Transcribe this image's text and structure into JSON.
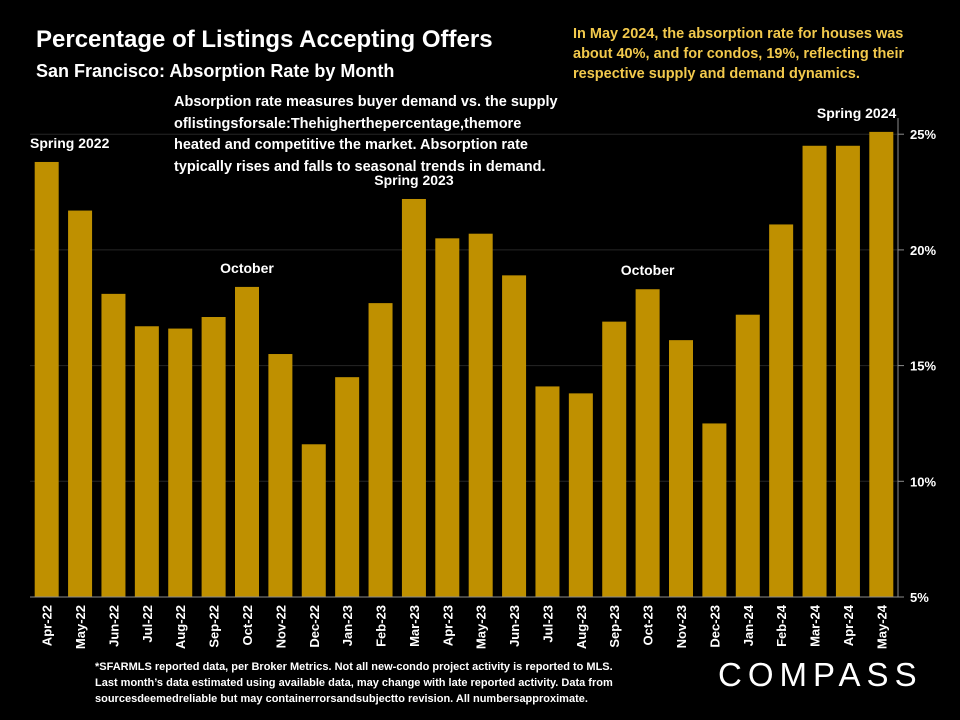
{
  "header": {
    "title": "Percentage of Listings Accepting Offers",
    "subtitle": "San Francisco: Absorption Rate by Month"
  },
  "callout": {
    "text": "In May 2024, the absorption rate for houses was about 40%, and for condos, 19%, reflecting their respective supply and demand dynamics.",
    "color": "#F2C94C"
  },
  "note": {
    "lines": [
      "Absorption rate measures buyer demand vs. the supply",
      "oflistingsforsale:Thehigherthepercentage,themore",
      "heated and competitive the market. Absorption rate",
      "typically rises and falls to seasonal trends in demand."
    ]
  },
  "footnote": {
    "lines": [
      "*SFARMLS reported data, per Broker Metrics. Not all new-condo project activity is reported to MLS.",
      "Last month’s data estimated using available data, may change with late reported activity. Data from",
      "sourcesdeemedreliable but may containerrorsandsubjectto revision. All numbersapproximate."
    ]
  },
  "brand": {
    "name": "COMPASS"
  },
  "chart_data": {
    "type": "bar",
    "categories": [
      "Apr-22",
      "May-22",
      "Jun-22",
      "Jul-22",
      "Aug-22",
      "Sep-22",
      "Oct-22",
      "Nov-22",
      "Dec-22",
      "Jan-23",
      "Feb-23",
      "Mar-23",
      "Apr-23",
      "May-23",
      "Jun-23",
      "Jul-23",
      "Aug-23",
      "Sep-23",
      "Oct-23",
      "Nov-23",
      "Dec-23",
      "Jan-24",
      "Feb-24",
      "Mar-24",
      "Apr-24",
      "May-24"
    ],
    "values": [
      23.8,
      21.7,
      18.1,
      16.7,
      16.6,
      17.1,
      18.4,
      15.5,
      11.6,
      14.5,
      17.7,
      22.2,
      20.5,
      20.7,
      18.9,
      14.1,
      13.8,
      16.9,
      18.3,
      16.1,
      12.5,
      17.2,
      21.1,
      24.5,
      24.5,
      25.1
    ],
    "y_ticks": [
      "5%",
      "10%",
      "15%",
      "20%",
      "25%"
    ],
    "ylim": [
      5,
      25.7
    ],
    "y_axis_side": "right",
    "grid": true,
    "bar_color": "#BF9000",
    "annotations": [
      {
        "text": "Spring 2022",
        "category": "Apr-22"
      },
      {
        "text": "October",
        "category": "Oct-22"
      },
      {
        "text": "Spring 2023",
        "category": "Mar-23"
      },
      {
        "text": "October",
        "category": "Oct-23"
      },
      {
        "text": "Spring 2024",
        "category": "May-24"
      }
    ]
  }
}
